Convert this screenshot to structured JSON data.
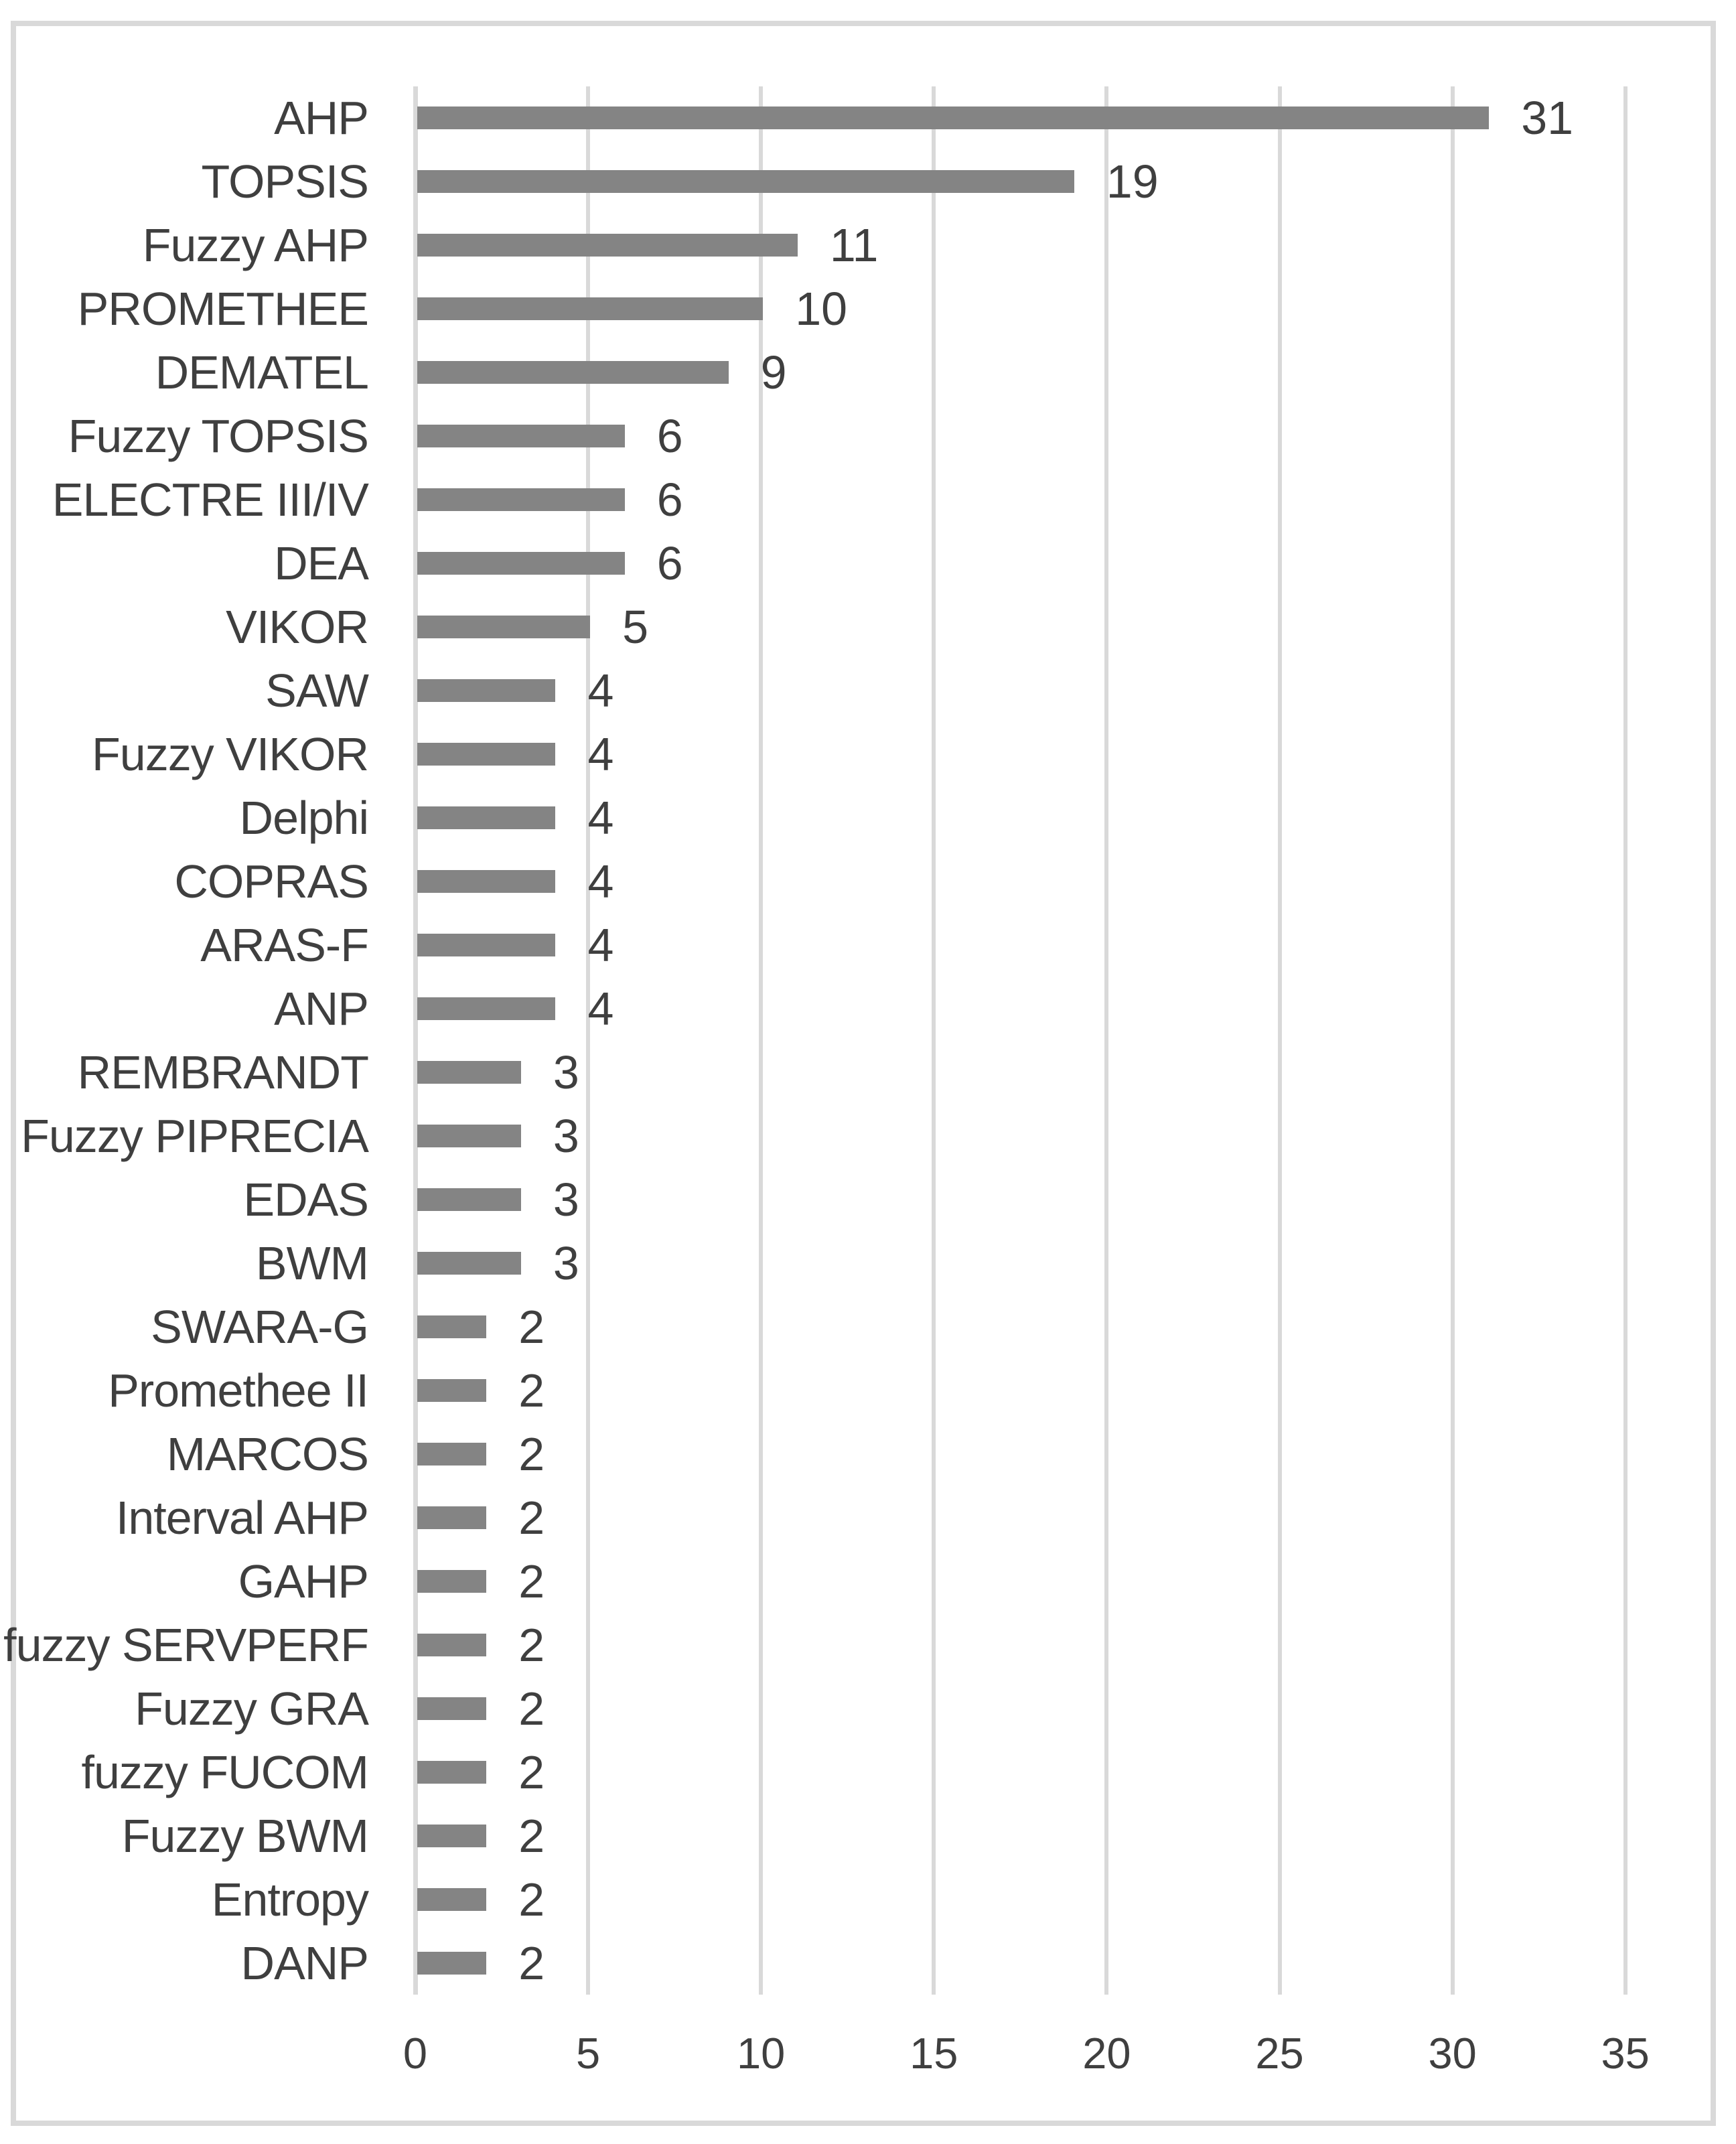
{
  "chart_data": {
    "type": "bar",
    "orientation": "horizontal",
    "title": "",
    "xlabel": "",
    "ylabel": "",
    "categories": [
      "AHP",
      "TOPSIS",
      "Fuzzy AHP",
      "PROMETHEE",
      "DEMATEL",
      "Fuzzy TOPSIS",
      "ELECTRE III/IV",
      "DEA",
      "VIKOR",
      "SAW",
      "Fuzzy VIKOR",
      "Delphi",
      "COPRAS",
      "ARAS-F",
      "ANP",
      "REMBRANDT",
      "Fuzzy PIPRECIA",
      "EDAS",
      "BWM",
      "SWARA-G",
      "Promethee II",
      "MARCOS",
      "Interval AHP",
      "GAHP",
      "fuzzy SERVPERF",
      "Fuzzy GRA",
      "fuzzy FUCOM",
      "Fuzzy BWM",
      "Entropy",
      "DANP"
    ],
    "values": [
      31,
      19,
      11,
      10,
      9,
      6,
      6,
      6,
      5,
      4,
      4,
      4,
      4,
      4,
      4,
      3,
      3,
      3,
      3,
      2,
      2,
      2,
      2,
      2,
      2,
      2,
      2,
      2,
      2,
      2
    ],
    "data_labels": [
      "31",
      "19",
      "11",
      "10",
      "9",
      "6",
      "6",
      "6",
      "5",
      "4",
      "4",
      "4",
      "4",
      "4",
      "4",
      "3",
      "3",
      "3",
      "3",
      "2",
      "2",
      "2",
      "2",
      "2",
      "2",
      "2",
      "2",
      "2",
      "2",
      "2"
    ],
    "x_ticks": [
      0,
      5,
      10,
      15,
      20,
      25,
      30,
      35
    ],
    "xlim": [
      0,
      35
    ],
    "grid": "vertical",
    "legend": "none",
    "bar_color": "#848484",
    "text_color": "#3F3F3F",
    "gridline_color": "#D9D9D9",
    "frame_color": "#D9D9D9",
    "background_color": "#FFFFFF"
  }
}
